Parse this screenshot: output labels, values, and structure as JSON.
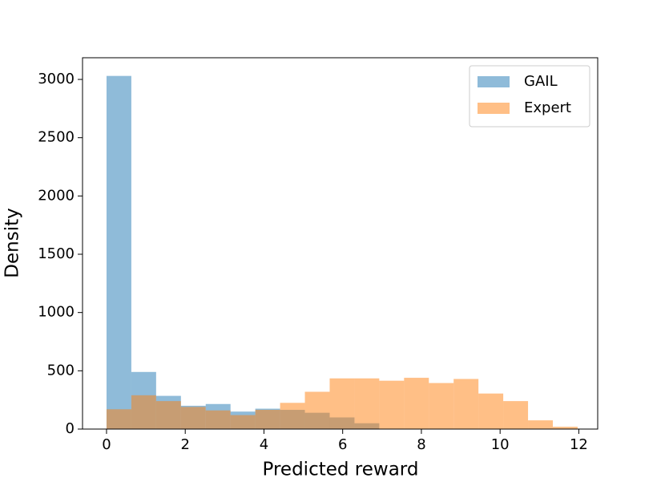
{
  "chart_data": {
    "type": "histogram",
    "xlabel": "Predicted reward",
    "ylabel": "Density",
    "xlim": [
      -0.61,
      12.48
    ],
    "ylim": [
      0,
      3186
    ],
    "xticks": [
      0,
      2,
      4,
      6,
      8,
      10,
      12
    ],
    "yticks": [
      0,
      500,
      1000,
      1500,
      2000,
      2500,
      3000
    ],
    "legend": "upper right",
    "alpha": 0.5,
    "series": [
      {
        "name": "GAIL",
        "color": "#1f77b4",
        "bins": [
          0,
          0.63,
          1.26,
          1.89,
          2.52,
          3.15,
          3.78,
          4.41,
          5.04,
          5.67,
          6.3,
          6.93
        ],
        "values": [
          3030,
          490,
          285,
          200,
          215,
          150,
          175,
          165,
          140,
          100,
          50
        ]
      },
      {
        "name": "Expert",
        "color": "#ff7f0e",
        "bins": [
          0,
          0.63,
          1.26,
          1.89,
          2.52,
          3.15,
          3.78,
          4.41,
          5.04,
          5.67,
          6.3,
          6.93,
          7.56,
          8.19,
          8.82,
          9.45,
          10.08,
          10.71,
          11.34,
          11.97
        ],
        "values": [
          170,
          290,
          240,
          190,
          160,
          120,
          165,
          225,
          320,
          435,
          435,
          415,
          440,
          395,
          430,
          305,
          240,
          75,
          20
        ]
      }
    ]
  }
}
